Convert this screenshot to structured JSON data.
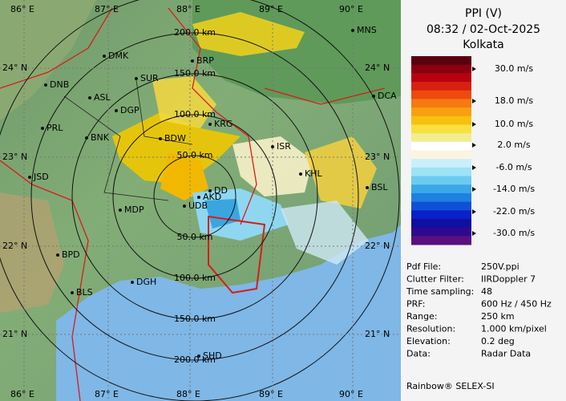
{
  "header": {
    "title": "PPI (V)",
    "time": "08:32 / 02-Oct-2025",
    "site": "Kolkata"
  },
  "legend": {
    "labels": [
      "30.0 m/s",
      "18.0 m/s",
      "10.0 m/s",
      "2.0 m/s",
      "-6.0 m/s",
      "-14.0 m/s",
      "-22.0 m/s",
      "-30.0 m/s"
    ]
  },
  "info": {
    "rows": [
      [
        "Pdf File:",
        "250V.ppi"
      ],
      [
        "Clutter Filter:",
        "IIRDoppler 7"
      ],
      [
        "Time sampling:",
        "48"
      ],
      [
        "PRF:",
        "600 Hz / 450 Hz"
      ],
      [
        "Range:",
        "250 km"
      ],
      [
        "Resolution:",
        "1.000 km/pixel"
      ],
      [
        "Elevation:",
        "0.2 deg"
      ],
      [
        "Data:",
        "Radar Data"
      ]
    ]
  },
  "footer": "Rainbow® SELEX-SI",
  "map": {
    "rings": [
      "50.0 km",
      "100.0 km",
      "150.0 km",
      "200.0 km"
    ],
    "lon_labels": [
      "86° E",
      "87° E",
      "88° E",
      "89° E",
      "90° E"
    ],
    "lat_labels": [
      "24° N",
      "23° N",
      "22° N",
      "21° N"
    ],
    "cities": [
      "MNS",
      "DMK",
      "BRP",
      "DNB",
      "SUR",
      "ASL",
      "DGP",
      "DCA",
      "KRG",
      "PRL",
      "BNK",
      "BDW",
      "ISR",
      "JSD",
      "KHL",
      "BSL",
      "DD",
      "AKD",
      "UDB",
      "MDP",
      "BPD",
      "DGH",
      "BLS",
      "SHD"
    ]
  }
}
